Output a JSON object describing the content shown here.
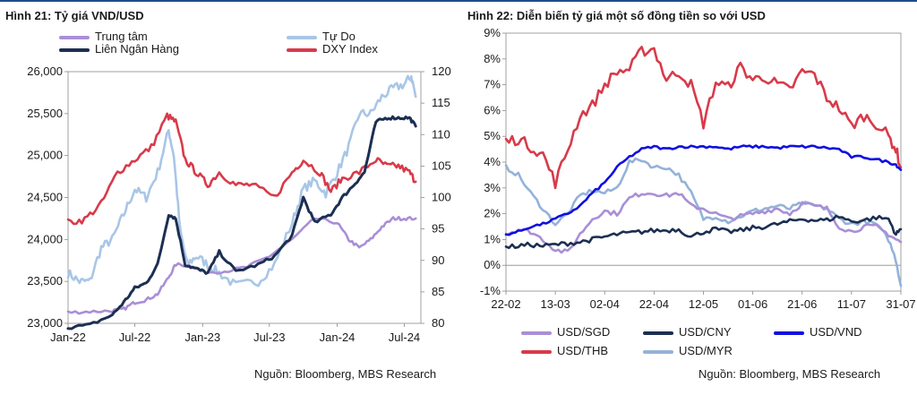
{
  "header": {
    "left_title": "Hình 21: Tỷ giá VND/USD",
    "right_title": "Hình 22: Diễn biến tỷ giá một số đồng tiền so với USD"
  },
  "left_source": "Nguồn: Bloomberg, MBS Research",
  "right_source": "Nguồn: Bloomberg, MBS Research",
  "chart_data": [
    {
      "type": "line",
      "title": "Hình 21: Tỷ giá VND/USD",
      "x_ticks": [
        "Jan-22",
        "Jul-22",
        "Jan-23",
        "Jul-23",
        "Jan-24",
        "Jul-24"
      ],
      "x_range": [
        "2022-01-01",
        "2024-08-15"
      ],
      "y_left": {
        "ylim": [
          23000,
          26000
        ],
        "ticks": [
          "23,000",
          "23,500",
          "24,000",
          "24,500",
          "25,000",
          "25,500",
          "26,000"
        ]
      },
      "y_right": {
        "ylim": [
          80,
          120
        ],
        "ticks": [
          "80",
          "85",
          "90",
          "95",
          "100",
          "105",
          "110",
          "115",
          "120"
        ]
      },
      "grid": false,
      "legend": "top, 2 columns",
      "series": [
        {
          "name": "Trung tâm",
          "axis": "left",
          "color": "#a98fd6",
          "x": [
            "2022-01-01",
            "2022-03-01",
            "2022-05-01",
            "2022-06-01",
            "2022-07-01",
            "2022-08-01",
            "2022-09-01",
            "2022-10-01",
            "2022-10-20",
            "2022-12-01",
            "2023-01-01",
            "2023-03-01",
            "2023-05-01",
            "2023-07-01",
            "2023-09-01",
            "2023-11-01",
            "2024-01-01",
            "2024-02-01",
            "2024-03-01",
            "2024-04-01",
            "2024-05-01",
            "2024-06-01",
            "2024-07-01",
            "2024-08-01"
          ],
          "values": [
            23130,
            23140,
            23150,
            23170,
            23250,
            23280,
            23350,
            23550,
            23700,
            23690,
            23610,
            23620,
            23670,
            23800,
            24000,
            24250,
            24200,
            24000,
            23900,
            24000,
            24150,
            24250,
            24250,
            24250
          ]
        },
        {
          "name": "Liên Ngân Hàng",
          "axis": "left",
          "color": "#1c2f52",
          "x": [
            "2022-01-01",
            "2022-03-01",
            "2022-05-01",
            "2022-06-01",
            "2022-07-01",
            "2022-08-01",
            "2022-09-01",
            "2022-10-01",
            "2022-10-20",
            "2022-11-15",
            "2022-12-15",
            "2023-01-15",
            "2023-02-15",
            "2023-04-01",
            "2023-06-01",
            "2023-07-15",
            "2023-09-01",
            "2023-10-01",
            "2023-11-01",
            "2023-12-15",
            "2024-01-15",
            "2024-02-15",
            "2024-03-15",
            "2024-04-15",
            "2024-05-15",
            "2024-06-15",
            "2024-07-15",
            "2024-08-01"
          ],
          "values": [
            22950,
            22980,
            23100,
            23250,
            23420,
            23480,
            23700,
            24300,
            24250,
            23700,
            23650,
            23600,
            23850,
            23620,
            23700,
            23800,
            24050,
            24500,
            24200,
            24300,
            24500,
            24650,
            24800,
            25400,
            25450,
            25450,
            25450,
            25350
          ]
        },
        {
          "name": "Tự Do",
          "axis": "left",
          "color": "#a9c6e6",
          "x": [
            "2022-01-01",
            "2022-02-01",
            "2022-03-01",
            "2022-04-01",
            "2022-05-01",
            "2022-06-01",
            "2022-07-01",
            "2022-08-01",
            "2022-09-01",
            "2022-10-01",
            "2022-10-15",
            "2022-11-01",
            "2022-11-20",
            "2022-12-15",
            "2023-01-15",
            "2023-02-15",
            "2023-04-01",
            "2023-06-01",
            "2023-07-15",
            "2023-09-01",
            "2023-10-01",
            "2023-11-01",
            "2023-12-01",
            "2024-01-01",
            "2024-02-01",
            "2024-03-01",
            "2024-04-01",
            "2024-05-01",
            "2024-06-01",
            "2024-07-01",
            "2024-07-20",
            "2024-08-01"
          ],
          "values": [
            23600,
            23500,
            23500,
            23900,
            24000,
            24300,
            24600,
            24500,
            24800,
            25300,
            25000,
            24100,
            23700,
            23800,
            23700,
            23600,
            23450,
            23500,
            23700,
            24200,
            24600,
            24700,
            24550,
            24800,
            25100,
            25500,
            25500,
            25700,
            25800,
            25850,
            25950,
            25700
          ]
        },
        {
          "name": "DXY Index",
          "axis": "right",
          "color": "#d83a4a",
          "x": [
            "2022-01-01",
            "2022-02-15",
            "2022-04-01",
            "2022-05-15",
            "2022-07-01",
            "2022-08-15",
            "2022-09-27",
            "2022-10-20",
            "2022-11-15",
            "2022-12-15",
            "2023-01-15",
            "2023-02-15",
            "2023-04-01",
            "2023-05-15",
            "2023-07-15",
            "2023-09-01",
            "2023-10-01",
            "2023-11-15",
            "2023-12-15",
            "2024-01-15",
            "2024-03-01",
            "2024-04-15",
            "2024-05-15",
            "2024-06-15",
            "2024-07-15",
            "2024-08-01"
          ],
          "values": [
            96,
            96.5,
            99,
            104,
            106,
            108,
            113,
            112,
            106,
            104,
            102,
            104,
            102,
            102,
            100,
            104,
            106,
            104,
            101,
            103,
            104,
            106,
            105,
            105,
            104,
            102.5
          ]
        }
      ]
    },
    {
      "type": "line",
      "title": "Hình 22: Diễn biến tỷ giá một số đồng tiền so với USD",
      "categories": [
        "22-02",
        "13-03",
        "02-04",
        "22-04",
        "12-05",
        "01-06",
        "21-06",
        "11-07",
        "31-07"
      ],
      "x_range_days": [
        0,
        160
      ],
      "ylim": [
        -1,
        9
      ],
      "y_ticks": [
        "-1%",
        "0%",
        "1%",
        "2%",
        "3%",
        "4%",
        "5%",
        "6%",
        "7%",
        "8%",
        "9%"
      ],
      "grid": false,
      "legend": "bottom, 3 columns",
      "series": [
        {
          "name": "USD/SGD",
          "color": "#a98fd6",
          "x": [
            0,
            5,
            10,
            15,
            20,
            25,
            30,
            35,
            40,
            45,
            50,
            55,
            60,
            65,
            70,
            75,
            80,
            85,
            90,
            95,
            100,
            105,
            110,
            115,
            120,
            125,
            130,
            135,
            140,
            145,
            150,
            155,
            158,
            160
          ],
          "values": [
            1.2,
            1.4,
            1.3,
            1.0,
            0.6,
            0.5,
            1.2,
            1.8,
            2.1,
            2.0,
            2.6,
            2.8,
            2.8,
            2.7,
            2.8,
            2.3,
            2.2,
            2.0,
            1.8,
            1.9,
            2.0,
            2.1,
            2.2,
            2.0,
            2.4,
            2.3,
            2.2,
            1.5,
            1.3,
            1.5,
            1.5,
            1.2,
            1.0,
            0.9
          ]
        },
        {
          "name": "USD/CNY",
          "color": "#1c2f52",
          "x": [
            0,
            5,
            10,
            15,
            20,
            25,
            30,
            35,
            40,
            45,
            50,
            55,
            60,
            65,
            70,
            75,
            80,
            85,
            90,
            95,
            100,
            105,
            110,
            115,
            120,
            125,
            130,
            135,
            140,
            145,
            150,
            155,
            158,
            160
          ],
          "values": [
            0.7,
            0.75,
            0.8,
            0.75,
            0.8,
            0.85,
            0.9,
            1.0,
            1.1,
            1.2,
            1.25,
            1.3,
            1.35,
            1.35,
            1.4,
            1.1,
            1.3,
            1.4,
            1.3,
            1.35,
            1.45,
            1.5,
            1.6,
            1.7,
            1.8,
            1.75,
            1.75,
            1.9,
            1.7,
            1.75,
            1.85,
            1.8,
            1.2,
            1.4
          ]
        },
        {
          "name": "USD/VND",
          "color": "#1010e0",
          "x": [
            0,
            5,
            10,
            15,
            20,
            25,
            30,
            35,
            40,
            45,
            50,
            55,
            60,
            65,
            70,
            75,
            80,
            85,
            90,
            95,
            100,
            105,
            110,
            115,
            120,
            125,
            130,
            135,
            140,
            145,
            150,
            155,
            158,
            160
          ],
          "values": [
            1.2,
            1.3,
            1.5,
            1.6,
            1.8,
            2.0,
            2.3,
            2.8,
            3.2,
            3.8,
            4.2,
            4.5,
            4.6,
            4.5,
            4.6,
            4.6,
            4.6,
            4.6,
            4.5,
            4.6,
            4.6,
            4.6,
            4.55,
            4.6,
            4.6,
            4.6,
            4.55,
            4.5,
            4.2,
            4.2,
            4.1,
            4.0,
            3.9,
            3.7
          ]
        },
        {
          "name": "USD/THB",
          "color": "#d83a4a",
          "x": [
            0,
            5,
            10,
            15,
            20,
            25,
            30,
            35,
            40,
            45,
            50,
            55,
            60,
            65,
            70,
            75,
            80,
            85,
            90,
            95,
            100,
            105,
            110,
            115,
            120,
            125,
            130,
            135,
            140,
            145,
            150,
            155,
            158,
            160
          ],
          "values": [
            4.8,
            4.9,
            4.6,
            4.3,
            3.2,
            4.5,
            5.8,
            6.2,
            7.0,
            7.5,
            7.6,
            8.3,
            8.4,
            7.2,
            7.5,
            7.0,
            5.5,
            7.1,
            6.9,
            7.7,
            7.2,
            7.3,
            7.0,
            6.8,
            7.5,
            7.4,
            6.5,
            6.1,
            5.4,
            5.8,
            5.5,
            5.0,
            4.5,
            3.8
          ]
        },
        {
          "name": "USD/MYR",
          "color": "#94b2da",
          "x": [
            0,
            5,
            10,
            15,
            20,
            25,
            30,
            35,
            40,
            45,
            50,
            55,
            60,
            65,
            70,
            75,
            80,
            85,
            90,
            95,
            100,
            105,
            110,
            115,
            120,
            125,
            130,
            135,
            140,
            145,
            150,
            155,
            158,
            160
          ],
          "values": [
            3.8,
            3.5,
            2.8,
            2.2,
            1.6,
            2.0,
            2.7,
            2.9,
            2.8,
            3.0,
            4.0,
            4.1,
            3.8,
            3.8,
            3.5,
            2.8,
            1.8,
            1.9,
            1.7,
            1.9,
            2.1,
            2.2,
            2.3,
            2.2,
            2.4,
            2.3,
            2.2,
            1.8,
            1.6,
            1.7,
            1.6,
            1.0,
            0.2,
            -0.8
          ]
        }
      ]
    }
  ]
}
